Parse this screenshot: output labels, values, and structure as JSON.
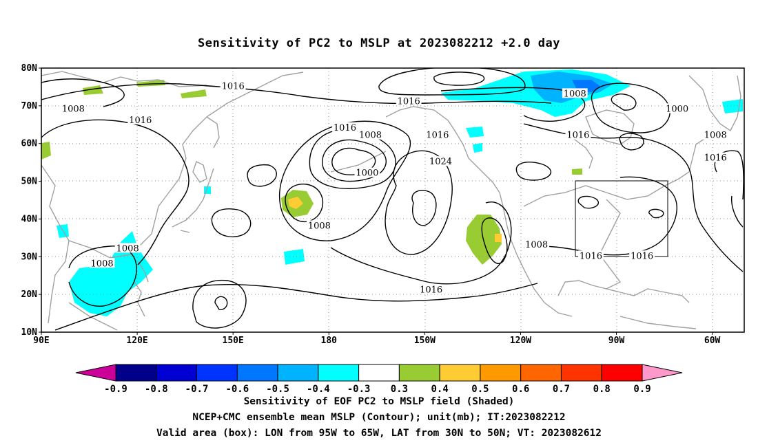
{
  "title": "Sensitivity of PC2 to MSLP at 2023082212 +2.0 day",
  "map": {
    "lon_range": [
      90,
      310
    ],
    "lat_range": [
      10,
      80
    ],
    "lat_ticks": [
      {
        "value": 80,
        "label": "80N"
      },
      {
        "value": 70,
        "label": "70N"
      },
      {
        "value": 60,
        "label": "60N"
      },
      {
        "value": 50,
        "label": "50N"
      },
      {
        "value": 40,
        "label": "40N"
      },
      {
        "value": 30,
        "label": "30N"
      },
      {
        "value": 20,
        "label": "20N"
      },
      {
        "value": 10,
        "label": "10N"
      }
    ],
    "lon_ticks": [
      {
        "value": 90,
        "label": "90E"
      },
      {
        "value": 120,
        "label": "120E"
      },
      {
        "value": 150,
        "label": "150E"
      },
      {
        "value": 180,
        "label": "180"
      },
      {
        "value": 210,
        "label": "150W"
      },
      {
        "value": 240,
        "label": "120W"
      },
      {
        "value": 270,
        "label": "90W"
      },
      {
        "value": 300,
        "label": "60W"
      }
    ],
    "grid": "dotted",
    "valid_box": {
      "lon": [
        265,
        295
      ],
      "lat": [
        30,
        50
      ]
    },
    "contour_labels": [
      {
        "text": "1016",
        "lon": 150,
        "lat": 75
      },
      {
        "text": "1008",
        "lon": 100,
        "lat": 69
      },
      {
        "text": "1016",
        "lon": 121,
        "lat": 66
      },
      {
        "text": "1016",
        "lon": 205,
        "lat": 71
      },
      {
        "text": "1016",
        "lon": 185,
        "lat": 64
      },
      {
        "text": "1008",
        "lon": 193,
        "lat": 62
      },
      {
        "text": "1016",
        "lon": 214,
        "lat": 62
      },
      {
        "text": "1000",
        "lon": 192,
        "lat": 52
      },
      {
        "text": "1024",
        "lon": 215,
        "lat": 55
      },
      {
        "text": "1008",
        "lon": 177,
        "lat": 38
      },
      {
        "text": "1008",
        "lon": 117,
        "lat": 32
      },
      {
        "text": "1008",
        "lon": 109,
        "lat": 28
      },
      {
        "text": "1016",
        "lon": 212,
        "lat": 21
      },
      {
        "text": "1008",
        "lon": 245,
        "lat": 33
      },
      {
        "text": "1016",
        "lon": 262,
        "lat": 30
      },
      {
        "text": "1016",
        "lon": 278,
        "lat": 30
      },
      {
        "text": "1016",
        "lon": 258,
        "lat": 62
      },
      {
        "text": "1008",
        "lon": 257,
        "lat": 73
      },
      {
        "text": "1000",
        "lon": 289,
        "lat": 69
      },
      {
        "text": "1008",
        "lon": 301,
        "lat": 62
      },
      {
        "text": "1016",
        "lon": 301,
        "lat": 56
      }
    ]
  },
  "colorbar": {
    "labels": [
      "-0.9",
      "-0.8",
      "-0.7",
      "-0.6",
      "-0.5",
      "-0.4",
      "-0.3",
      "0.3",
      "0.4",
      "0.5",
      "0.6",
      "0.7",
      "0.8",
      "0.9"
    ],
    "colors": [
      "#00008b",
      "#0000d2",
      "#0033ff",
      "#0077ff",
      "#00b3ff",
      "#00ffff",
      "#ffffff",
      "#99cc33",
      "#ffcc33",
      "#ff9900",
      "#ff6600",
      "#ff3300",
      "#ff0000"
    ],
    "left_tip_color": "#cc0099",
    "right_tip_color": "#ff99cc"
  },
  "colors": {
    "contour": "#000000",
    "coast": "#a0a0a0",
    "grid": "#888888"
  },
  "captions": [
    "Sensitivity of EOF PC2 to MSLP field (Shaded)",
    "NCEP+CMC ensemble mean MSLP (Contour); unit(mb); IT:2023082212",
    "Valid area (box): LON from 95W to 65W, LAT from 30N to 50N; VT: 2023082612"
  ]
}
